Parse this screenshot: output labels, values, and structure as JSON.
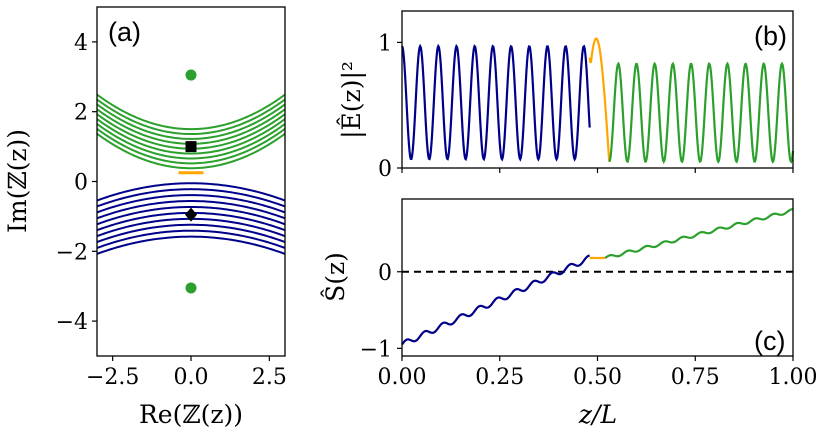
{
  "colors": {
    "blue": "#00008b",
    "green": "#2ca02c",
    "orange": "#ffa500",
    "black": "#000000"
  },
  "chart_data": [
    {
      "id": "a",
      "panel_label": "(a)",
      "type": "line",
      "xlabel": "Re(ℤ(z))",
      "ylabel": "Im(ℤ(z))",
      "xlim": [
        -3,
        3
      ],
      "ylim": [
        -5,
        5
      ],
      "xticks": [
        -2.5,
        0.0,
        2.5
      ],
      "xtick_labels": [
        "−2.5",
        "0.0",
        "2.5"
      ],
      "yticks": [
        -4,
        -2,
        0,
        2,
        4
      ],
      "ytick_labels": [
        "−4",
        "−2",
        "0",
        "2",
        "4"
      ],
      "green_curves": {
        "center_values": [
          0.38,
          0.52,
          0.66,
          0.8,
          0.94,
          1.08,
          1.22,
          1.36,
          1.5
        ],
        "curvature": 0.11
      },
      "blue_curves": {
        "center_values": [
          -0.05,
          -0.22,
          -0.39,
          -0.56,
          -0.73,
          -0.9,
          -1.07,
          -1.24,
          -1.41,
          -1.58
        ],
        "curvature": 0.055
      },
      "orange_segment": {
        "x": [
          -0.4,
          0.4
        ],
        "y": 0.25
      },
      "points": [
        {
          "name": "green-dot-top",
          "x": 0,
          "y": 3.05,
          "marker": "circle",
          "color": "green"
        },
        {
          "name": "black-square",
          "x": 0,
          "y": 1.0,
          "marker": "square",
          "color": "black"
        },
        {
          "name": "black-diamond",
          "x": 0,
          "y": -0.95,
          "marker": "diamond",
          "color": "black"
        },
        {
          "name": "green-dot-bottom",
          "x": 0,
          "y": -3.05,
          "marker": "circle",
          "color": "green"
        }
      ]
    },
    {
      "id": "b",
      "panel_label": "(b)",
      "type": "line",
      "ylabel": "|Ê(z)|²",
      "xlim": [
        0,
        1
      ],
      "ylim": [
        0,
        1.25
      ],
      "yticks": [
        0,
        1
      ],
      "ytick_labels": [
        "0",
        "1"
      ],
      "segments": [
        {
          "name": "blue",
          "x": [
            0,
            0.48
          ],
          "min": 0.07,
          "max": 0.97,
          "period": 0.0465,
          "phase": 0.0
        },
        {
          "name": "orange",
          "x": [
            0.48,
            0.53
          ],
          "peak": 1.03,
          "start": 0.88,
          "end": 0.05
        },
        {
          "name": "green",
          "x": [
            0.53,
            1.0
          ],
          "min": 0.05,
          "max": 0.83,
          "period": 0.0465,
          "phase": 0.5
        }
      ]
    },
    {
      "id": "c",
      "panel_label": "(c)",
      "type": "line",
      "xlabel": "z/L",
      "ylabel": "Ŝ(z)",
      "xlim": [
        0,
        1
      ],
      "ylim": [
        -1.1,
        0.95
      ],
      "xticks": [
        0,
        0.25,
        0.5,
        0.75,
        1.0
      ],
      "xtick_labels": [
        "0.00",
        "0.25",
        "0.50",
        "0.75",
        "1.00"
      ],
      "yticks": [
        -1,
        0
      ],
      "ytick_labels": [
        "−1",
        "0"
      ],
      "reference_line": {
        "y": 0,
        "style": "dashed"
      },
      "segments": [
        {
          "name": "blue",
          "x": [
            0,
            0.48
          ],
          "y": [
            -0.95,
            0.18
          ],
          "wiggle": 0.035,
          "period": 0.0465
        },
        {
          "name": "orange",
          "x": [
            0.48,
            0.52
          ],
          "y": [
            0.18,
            0.18
          ]
        },
        {
          "name": "green",
          "x": [
            0.52,
            1.0
          ],
          "y": [
            0.18,
            0.8
          ],
          "wiggle": 0.02,
          "period": 0.0465
        }
      ]
    }
  ]
}
